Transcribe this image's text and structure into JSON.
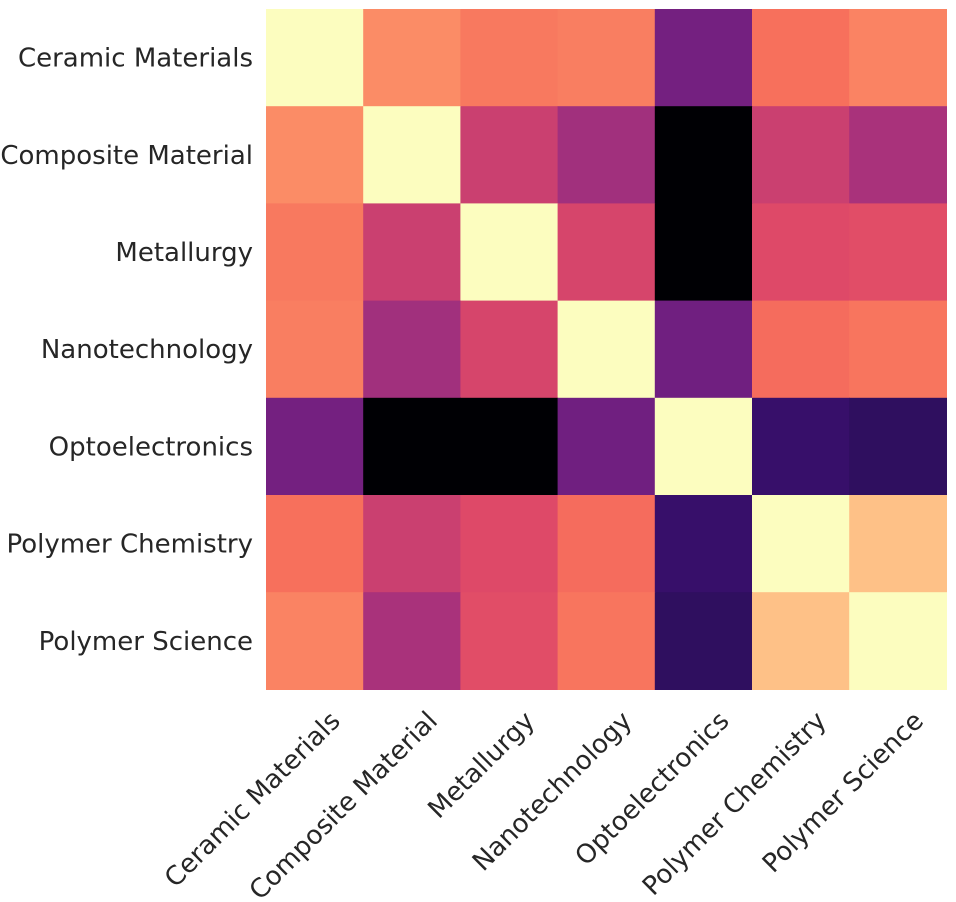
{
  "chart_data": {
    "type": "heatmap",
    "rows": [
      "Ceramic Materials",
      "Composite Material",
      "Metallurgy",
      "Nanotechnology",
      "Optoelectronics",
      "Polymer Chemistry",
      "Polymer Science"
    ],
    "columns": [
      "Ceramic Materials",
      "Composite Material",
      "Metallurgy",
      "Nanotechnology",
      "Optoelectronics",
      "Polymer Chemistry",
      "Polymer Science"
    ],
    "values": [
      [
        1.0,
        0.76,
        0.72,
        0.73,
        0.34,
        0.7,
        0.74
      ],
      [
        0.76,
        1.0,
        0.55,
        0.45,
        0.0,
        0.55,
        0.47
      ],
      [
        0.72,
        0.55,
        1.0,
        0.58,
        0.0,
        0.6,
        0.61
      ],
      [
        0.73,
        0.45,
        0.58,
        1.0,
        0.33,
        0.69,
        0.71
      ],
      [
        0.34,
        0.0,
        0.0,
        0.33,
        1.0,
        0.19,
        0.17
      ],
      [
        0.7,
        0.55,
        0.6,
        0.69,
        0.19,
        1.0,
        0.87
      ],
      [
        0.74,
        0.47,
        0.61,
        0.71,
        0.17,
        0.87,
        1.0
      ]
    ],
    "colormap": "magma",
    "title": "",
    "xlabel": "",
    "ylabel": "",
    "legend": "none",
    "grid": false
  }
}
